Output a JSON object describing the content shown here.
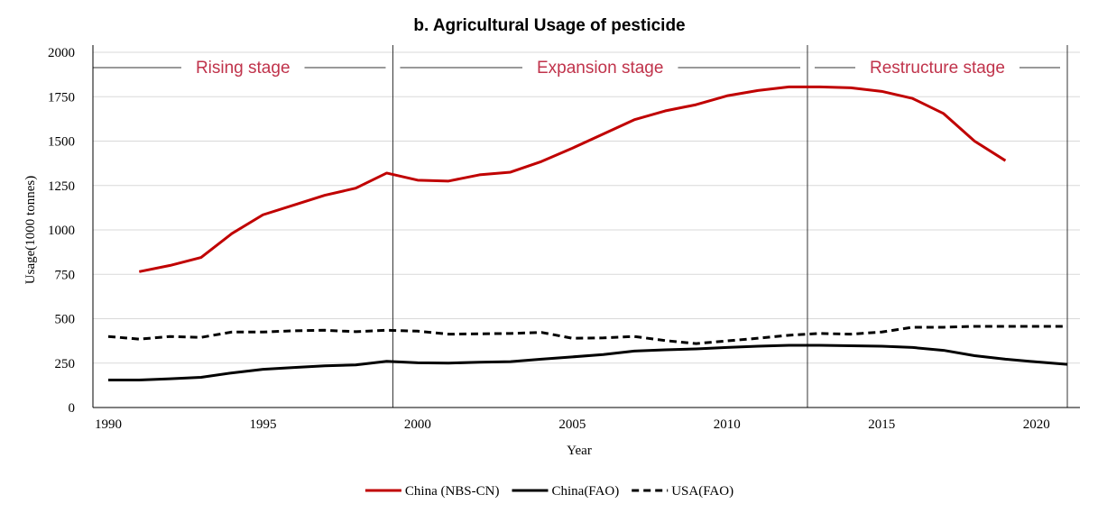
{
  "chart_data": {
    "type": "line",
    "title": "b. Agricultural Usage of pesticide",
    "xlabel": "Year",
    "ylabel": "Usage(1000 tonnes)",
    "xlim": [
      1990,
      2021
    ],
    "ylim": [
      0,
      2000
    ],
    "x_ticks": [
      1990,
      1995,
      2000,
      2005,
      2010,
      2015,
      2020
    ],
    "y_ticks": [
      0,
      250,
      500,
      750,
      1000,
      1250,
      1500,
      1750,
      2000
    ],
    "grid": "horizontal",
    "legend_position": "bottom",
    "stage_boundaries": [
      1999.2,
      2012.6,
      2021
    ],
    "stages": [
      {
        "label": "Rising stage",
        "from": 1990,
        "to": 1999.2
      },
      {
        "label": "Expansion stage",
        "from": 1999.2,
        "to": 2012.6
      },
      {
        "label": "Restructure stage",
        "from": 2012.6,
        "to": 2021
      }
    ],
    "series": [
      {
        "name": "China (NBS-CN)",
        "color": "#c00000",
        "dash": "solid",
        "x": [
          1991,
          1992,
          1993,
          1994,
          1995,
          1996,
          1997,
          1998,
          1999,
          2000,
          2001,
          2002,
          2003,
          2004,
          2005,
          2006,
          2007,
          2008,
          2009,
          2010,
          2011,
          2012,
          2013,
          2014,
          2015,
          2016,
          2017,
          2018,
          2019
        ],
        "y": [
          765,
          800,
          845,
          980,
          1085,
          1140,
          1195,
          1235,
          1320,
          1280,
          1275,
          1310,
          1325,
          1385,
          1460,
          1540,
          1620,
          1670,
          1705,
          1755,
          1785,
          1805,
          1805,
          1800,
          1780,
          1740,
          1655,
          1500,
          1390
        ]
      },
      {
        "name": "China(FAO)",
        "color": "#000000",
        "dash": "solid",
        "x": [
          1990,
          1991,
          1992,
          1993,
          1994,
          1995,
          1996,
          1997,
          1998,
          1999,
          2000,
          2001,
          2002,
          2003,
          2004,
          2005,
          2006,
          2007,
          2008,
          2009,
          2010,
          2011,
          2012,
          2013,
          2014,
          2015,
          2016,
          2017,
          2018,
          2019,
          2020,
          2021
        ],
        "y": [
          155,
          155,
          162,
          170,
          195,
          215,
          225,
          235,
          240,
          260,
          252,
          250,
          255,
          258,
          272,
          285,
          298,
          318,
          325,
          330,
          338,
          345,
          350,
          350,
          348,
          345,
          338,
          322,
          292,
          272,
          257,
          243
        ]
      },
      {
        "name": "USA(FAO)",
        "color": "#000000",
        "dash": "dashed",
        "x": [
          1990,
          1991,
          1992,
          1993,
          1994,
          1995,
          1996,
          1997,
          1998,
          1999,
          2000,
          2001,
          2002,
          2003,
          2004,
          2005,
          2006,
          2007,
          2008,
          2009,
          2010,
          2011,
          2012,
          2013,
          2014,
          2015,
          2016,
          2017,
          2018,
          2019,
          2020,
          2021
        ],
        "y": [
          400,
          385,
          400,
          395,
          425,
          425,
          432,
          435,
          427,
          435,
          430,
          413,
          415,
          417,
          423,
          390,
          392,
          400,
          377,
          360,
          375,
          390,
          407,
          417,
          413,
          425,
          452,
          452,
          457,
          457,
          457,
          457
        ]
      }
    ]
  }
}
